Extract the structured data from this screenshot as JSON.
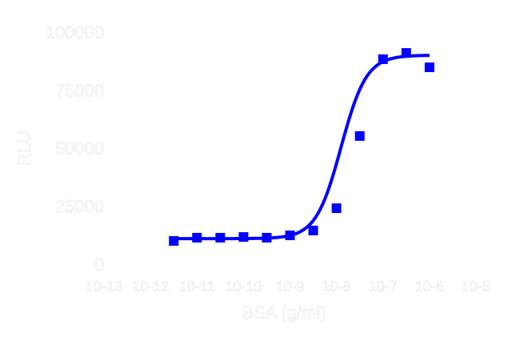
{
  "chart_data": {
    "type": "scatter",
    "title": "",
    "xlabel": "BSA (g/ml)",
    "ylabel": "RLU",
    "x_scale": "log",
    "xlim": [
      1e-13,
      1e-05
    ],
    "ylim": [
      0,
      100000
    ],
    "x_tick_labels": [
      "10-13",
      "10-12",
      "10-11",
      "10-10",
      "10-9",
      "10-8",
      "10-7",
      "10-6",
      "10-5"
    ],
    "y_tick_labels": [
      "0",
      "25000",
      "50000",
      "75000",
      "100000"
    ],
    "y_ticks": [
      0,
      25000,
      50000,
      75000,
      100000
    ],
    "grid": false,
    "color": "#0000ff",
    "points_log10x": [
      -11.5,
      -11,
      -10.5,
      -10,
      -9.5,
      -9,
      -8.5,
      -8,
      -7.5,
      -7,
      -6.5,
      -6
    ],
    "points_y": [
      10000,
      11400,
      11400,
      11700,
      11400,
      12400,
      14500,
      24100,
      55200,
      88300,
      91000,
      84800
    ],
    "fit": {
      "model": "sigmoidal dose-response",
      "bottom": 11000,
      "top": 90000,
      "log_ec50": -7.9,
      "hill_slope": 1.6
    }
  }
}
